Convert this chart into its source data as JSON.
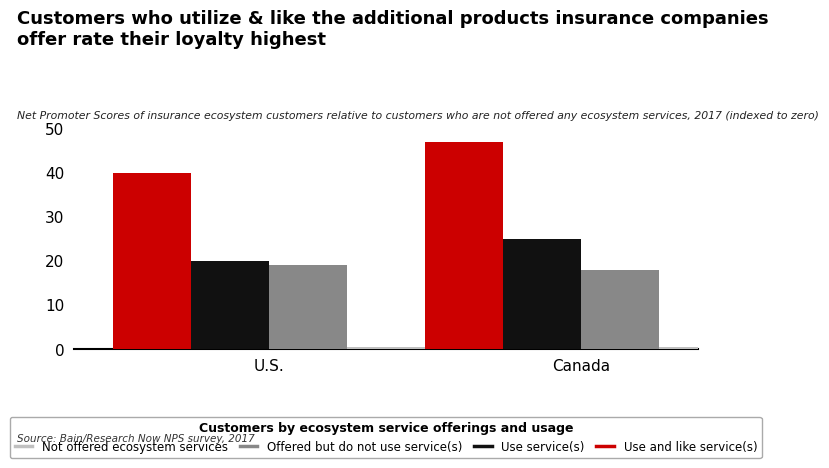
{
  "title": "Customers who utilize & like the additional products insurance companies\noffer rate their loyalty highest",
  "subtitle": "Net Promoter Scores of insurance ecosystem customers relative to customers who are not offered any ecosystem services, 2017 (indexed to zero)",
  "source": "Source: Bain/Research Now NPS survey, 2017",
  "categories": [
    "U.S.",
    "Canada"
  ],
  "series": [
    {
      "name": "Use and like service(s)",
      "values": [
        40,
        47
      ],
      "color": "#cc0000"
    },
    {
      "name": "Use service(s)",
      "values": [
        20,
        25
      ],
      "color": "#111111"
    },
    {
      "name": "Offered but do not use service(s)",
      "values": [
        19,
        18
      ],
      "color": "#888888"
    },
    {
      "name": "Not offered ecosystem services",
      "values": [
        0.5,
        0.5
      ],
      "color": "#c0c0c0"
    }
  ],
  "legend_order": [
    {
      "name": "Not offered ecosystem services",
      "color": "#c0c0c0"
    },
    {
      "name": "Offered but do not use service(s)",
      "color": "#888888"
    },
    {
      "name": "Use service(s)",
      "color": "#111111"
    },
    {
      "name": "Use and like service(s)",
      "color": "#cc0000"
    }
  ],
  "legend_title": "Customers by ecosystem service offerings and usage",
  "ylim": [
    0,
    50
  ],
  "yticks": [
    0,
    10,
    20,
    30,
    40,
    50
  ],
  "bar_width": 0.2,
  "background_color": "#ffffff",
  "title_fontsize": 13,
  "subtitle_fontsize": 7.8,
  "source_fontsize": 7.5,
  "axis_fontsize": 11,
  "legend_fontsize": 8.5,
  "legend_title_fontsize": 9
}
